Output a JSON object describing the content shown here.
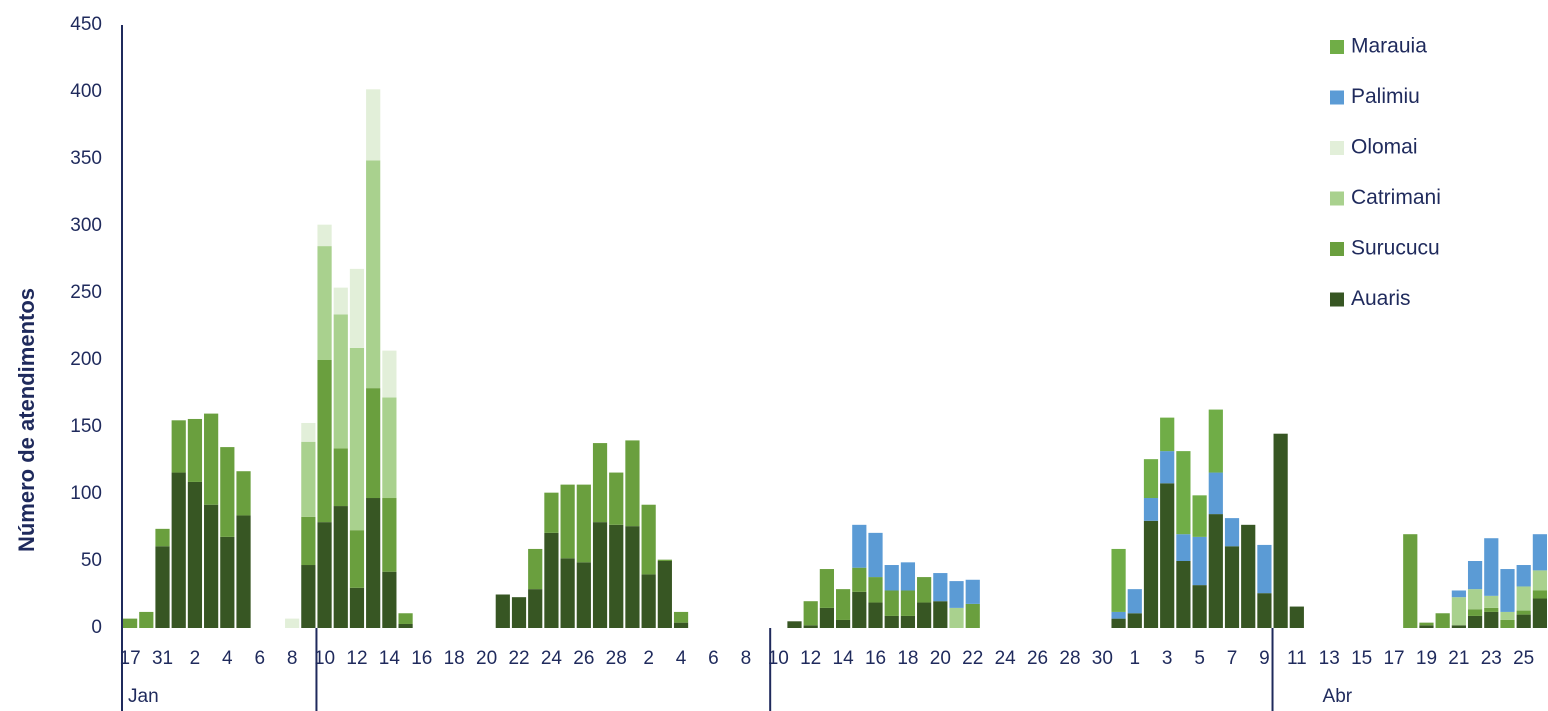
{
  "chart_data": {
    "type": "stacked_bar",
    "y_axis_label": "Número de atendimentos",
    "ylim": [
      0,
      450
    ],
    "yticks": [
      0,
      50,
      100,
      150,
      200,
      250,
      300,
      350,
      400,
      450
    ],
    "grid": false,
    "legend_position": "top-right",
    "categories": [
      "17",
      null,
      "31",
      null,
      "2",
      null,
      "4",
      null,
      "6",
      null,
      "8",
      null,
      "10",
      null,
      "12",
      null,
      "14",
      null,
      "16",
      null,
      "18",
      null,
      "20",
      null,
      "22",
      null,
      "24",
      null,
      "26",
      null,
      "28",
      null,
      "2",
      null,
      "4",
      null,
      "6",
      null,
      "8",
      null,
      "10",
      null,
      "12",
      null,
      "14",
      null,
      "16",
      null,
      "18",
      null,
      "20",
      null,
      "22",
      null,
      "24",
      null,
      "26",
      null,
      "28",
      null,
      "30",
      null,
      "1",
      null,
      "3",
      null,
      "5",
      null,
      "7",
      null,
      "9",
      null,
      "11",
      null,
      "13",
      null,
      "15",
      null,
      "17",
      null,
      "19",
      null,
      "21",
      null,
      "23",
      null,
      "25",
      null
    ],
    "groups": [
      {
        "label": "Jan",
        "count": 12
      },
      {
        "label": null,
        "count": 28
      },
      {
        "label": null,
        "count": 31
      },
      {
        "label": "Abr",
        "count": 17
      }
    ],
    "series": [
      {
        "name": "Auaris",
        "color": "#375623",
        "values": [
          0,
          0,
          61,
          116,
          109,
          92,
          68,
          84,
          0,
          0,
          0,
          47,
          79,
          91,
          30,
          97,
          42,
          3,
          0,
          0,
          0,
          0,
          0,
          25,
          23,
          29,
          71,
          52,
          49,
          79,
          77,
          76,
          40,
          50,
          4,
          0,
          0,
          0,
          0,
          0,
          0,
          5,
          2,
          15,
          6,
          27,
          19,
          9,
          9,
          19,
          20,
          0,
          0,
          0,
          0,
          0,
          0,
          0,
          0,
          0,
          0,
          7,
          11,
          80,
          108,
          50,
          32,
          85,
          61,
          77,
          26,
          145,
          16,
          0,
          0,
          0,
          0,
          0,
          0,
          0,
          2,
          0,
          2,
          9,
          12,
          0,
          10,
          22
        ]
      },
      {
        "name": "Surucucu",
        "color": "#6a9f3e",
        "values": [
          7,
          12,
          13,
          39,
          47,
          68,
          67,
          33,
          0,
          0,
          0,
          36,
          121,
          43,
          43,
          82,
          55,
          8,
          0,
          0,
          0,
          0,
          0,
          0,
          0,
          30,
          30,
          55,
          58,
          59,
          39,
          64,
          52,
          1,
          8,
          0,
          0,
          0,
          0,
          0,
          0,
          0,
          18,
          29,
          23,
          18,
          19,
          19,
          19,
          19,
          0,
          0,
          18,
          0,
          0,
          0,
          0,
          0,
          0,
          0,
          0,
          0,
          0,
          0,
          0,
          0,
          0,
          0,
          0,
          0,
          0,
          0,
          0,
          0,
          0,
          0,
          0,
          0,
          0,
          70,
          2,
          11,
          0,
          5,
          3,
          6,
          3,
          6
        ]
      },
      {
        "name": "Catrimani",
        "color": "#a9d18e",
        "values": [
          0,
          0,
          0,
          0,
          0,
          0,
          0,
          0,
          0,
          0,
          0,
          56,
          85,
          100,
          136,
          170,
          75,
          0,
          0,
          0,
          0,
          0,
          0,
          0,
          0,
          0,
          0,
          0,
          0,
          0,
          0,
          0,
          0,
          0,
          0,
          0,
          0,
          0,
          0,
          0,
          0,
          0,
          0,
          0,
          0,
          0,
          0,
          0,
          0,
          0,
          0,
          15,
          0,
          0,
          0,
          0,
          0,
          0,
          0,
          0,
          0,
          0,
          0,
          0,
          0,
          0,
          0,
          0,
          0,
          0,
          0,
          0,
          0,
          0,
          0,
          0,
          0,
          0,
          0,
          0,
          0,
          0,
          21,
          15,
          9,
          6,
          18,
          15
        ]
      },
      {
        "name": "Olomai",
        "color": "#e2efd9",
        "values": [
          0,
          0,
          0,
          0,
          0,
          0,
          0,
          0,
          0,
          0,
          7,
          14,
          16,
          20,
          59,
          53,
          35,
          0,
          0,
          0,
          0,
          0,
          0,
          0,
          0,
          0,
          0,
          0,
          0,
          0,
          0,
          0,
          0,
          0,
          0,
          0,
          0,
          0,
          0,
          0,
          0,
          0,
          0,
          0,
          0,
          0,
          0,
          0,
          0,
          0,
          0,
          0,
          0,
          0,
          0,
          0,
          0,
          0,
          0,
          0,
          0,
          0,
          0,
          0,
          0,
          0,
          0,
          0,
          0,
          0,
          0,
          0,
          0,
          0,
          0,
          0,
          0,
          0,
          0,
          0,
          0,
          0,
          0,
          0,
          0,
          0,
          0,
          0
        ]
      },
      {
        "name": "Palimiu",
        "color": "#5b9bd5",
        "values": [
          0,
          0,
          0,
          0,
          0,
          0,
          0,
          0,
          0,
          0,
          0,
          0,
          0,
          0,
          0,
          0,
          0,
          0,
          0,
          0,
          0,
          0,
          0,
          0,
          0,
          0,
          0,
          0,
          0,
          0,
          0,
          0,
          0,
          0,
          0,
          0,
          0,
          0,
          0,
          0,
          0,
          0,
          0,
          0,
          0,
          32,
          33,
          19,
          21,
          0,
          21,
          20,
          18,
          0,
          0,
          0,
          0,
          0,
          0,
          0,
          0,
          5,
          18,
          17,
          24,
          20,
          36,
          31,
          21,
          0,
          36,
          0,
          0,
          0,
          0,
          0,
          0,
          0,
          0,
          0,
          0,
          0,
          5,
          21,
          43,
          32,
          16,
          27
        ]
      },
      {
        "name": "Marauia",
        "color": "#70ad47",
        "values": [
          0,
          0,
          0,
          0,
          0,
          0,
          0,
          0,
          0,
          0,
          0,
          0,
          0,
          0,
          0,
          0,
          0,
          0,
          0,
          0,
          0,
          0,
          0,
          0,
          0,
          0,
          0,
          0,
          0,
          0,
          0,
          0,
          0,
          0,
          0,
          0,
          0,
          0,
          0,
          0,
          0,
          0,
          0,
          0,
          0,
          0,
          0,
          0,
          0,
          0,
          0,
          0,
          0,
          0,
          0,
          0,
          0,
          0,
          0,
          0,
          0,
          47,
          0,
          29,
          25,
          62,
          31,
          47,
          0,
          0,
          0,
          0,
          0,
          0,
          0,
          0,
          0,
          0,
          0,
          0,
          0,
          0,
          0,
          0,
          0,
          0,
          0,
          0
        ]
      }
    ]
  }
}
